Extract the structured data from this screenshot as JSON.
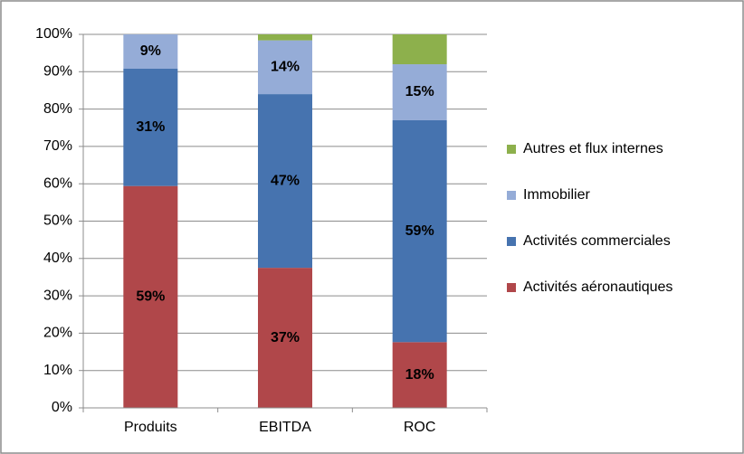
{
  "chart_data": {
    "type": "stacked-bar",
    "categories": [
      "Produits",
      "EBITDA",
      "ROC"
    ],
    "series": [
      {
        "name": "Activités aéronautiques",
        "color": "#b0474a",
        "values": [
          59.4,
          37.5,
          17.6
        ],
        "value_labels": [
          "59%",
          "37%",
          "18%"
        ]
      },
      {
        "name": "Activités commerciales",
        "color": "#4673af",
        "values": [
          31.4,
          46.5,
          59.4
        ],
        "value_labels": [
          "31%",
          "47%",
          "59%"
        ]
      },
      {
        "name": "Immobilier",
        "color": "#95acd7",
        "values": [
          9.2,
          14.4,
          15
        ],
        "value_labels": [
          "9%",
          "14%",
          "15%"
        ]
      },
      {
        "name": "Autres et flux internes",
        "color": "#8db04c",
        "values": [
          0,
          1.6,
          8
        ]
      }
    ],
    "ylim": [
      0,
      100
    ],
    "yticks": [
      {
        "value": 0,
        "label": "0%"
      },
      {
        "value": 10,
        "label": "10%"
      },
      {
        "value": 20,
        "label": "20%"
      },
      {
        "value": 30,
        "label": "30%"
      },
      {
        "value": 40,
        "label": "40%"
      },
      {
        "value": 50,
        "label": "50%"
      },
      {
        "value": 60,
        "label": "60%"
      },
      {
        "value": 70,
        "label": "70%"
      },
      {
        "value": 80,
        "label": "80%"
      },
      {
        "value": 90,
        "label": "90%"
      },
      {
        "value": 100,
        "label": "100%"
      }
    ],
    "grid": true,
    "legend": "right"
  }
}
